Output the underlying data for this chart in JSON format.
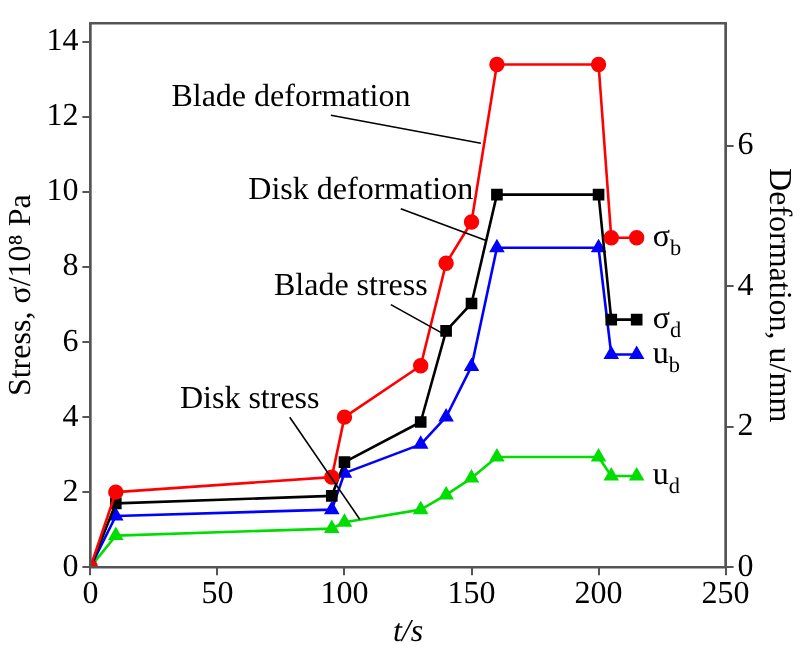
{
  "chart_data": {
    "type": "line",
    "xlabel": "t/s",
    "ylabel": "Stress, σ/10⁸ Pa",
    "y2label": "Deformation, u/mm",
    "xlim": [
      0,
      250
    ],
    "xticks": [
      0,
      50,
      100,
      150,
      200,
      250
    ],
    "ylim": [
      0,
      14.5
    ],
    "yticks": [
      0,
      2,
      4,
      6,
      8,
      10,
      12,
      14
    ],
    "y2lim": [
      0,
      7.75
    ],
    "y2ticks": [
      0,
      2,
      4,
      6
    ],
    "grid": false,
    "legend": false,
    "line_style": "solid",
    "x": [
      0,
      10,
      95,
      100,
      130,
      140,
      150,
      160,
      200,
      205,
      215
    ],
    "series": [
      {
        "name": "σ$_{b}$",
        "color": "#ff0000",
        "marker": "circle",
        "values": [
          0,
          2.0,
          2.4,
          4.0,
          5.37,
          8.1,
          9.2,
          13.4,
          13.4,
          8.78,
          8.78
        ]
      },
      {
        "name": "σ$_{d}$",
        "color": "#000000",
        "marker": "square",
        "values": [
          0,
          1.7,
          1.9,
          2.8,
          3.87,
          6.3,
          7.03,
          9.93,
          9.93,
          6.6,
          6.6
        ]
      },
      {
        "name": "u$_{b}$",
        "color": "#0000ff",
        "marker": "triangle",
        "axis": "y2",
        "values": [
          0,
          0.73,
          0.82,
          1.34,
          1.75,
          2.14,
          2.86,
          4.55,
          4.55,
          3.03,
          3.03
        ]
      },
      {
        "name": "u$_{d}$",
        "color": "#00dd00",
        "marker": "triangle",
        "axis": "y2",
        "values": [
          0,
          0.45,
          0.55,
          0.64,
          0.82,
          1.03,
          1.27,
          1.57,
          1.57,
          1.3,
          1.3
        ]
      }
    ],
    "annotations": [
      {
        "text": "Blade deformation",
        "x": 153.7,
        "y": 11.3
      },
      {
        "text": "Disk deformation",
        "x": 156,
        "y": 8.7
      },
      {
        "text": "Blade stress",
        "x": 139.5,
        "y": 6.2
      },
      {
        "text": "Disk stress",
        "x": 106,
        "y": 1.28
      }
    ]
  }
}
